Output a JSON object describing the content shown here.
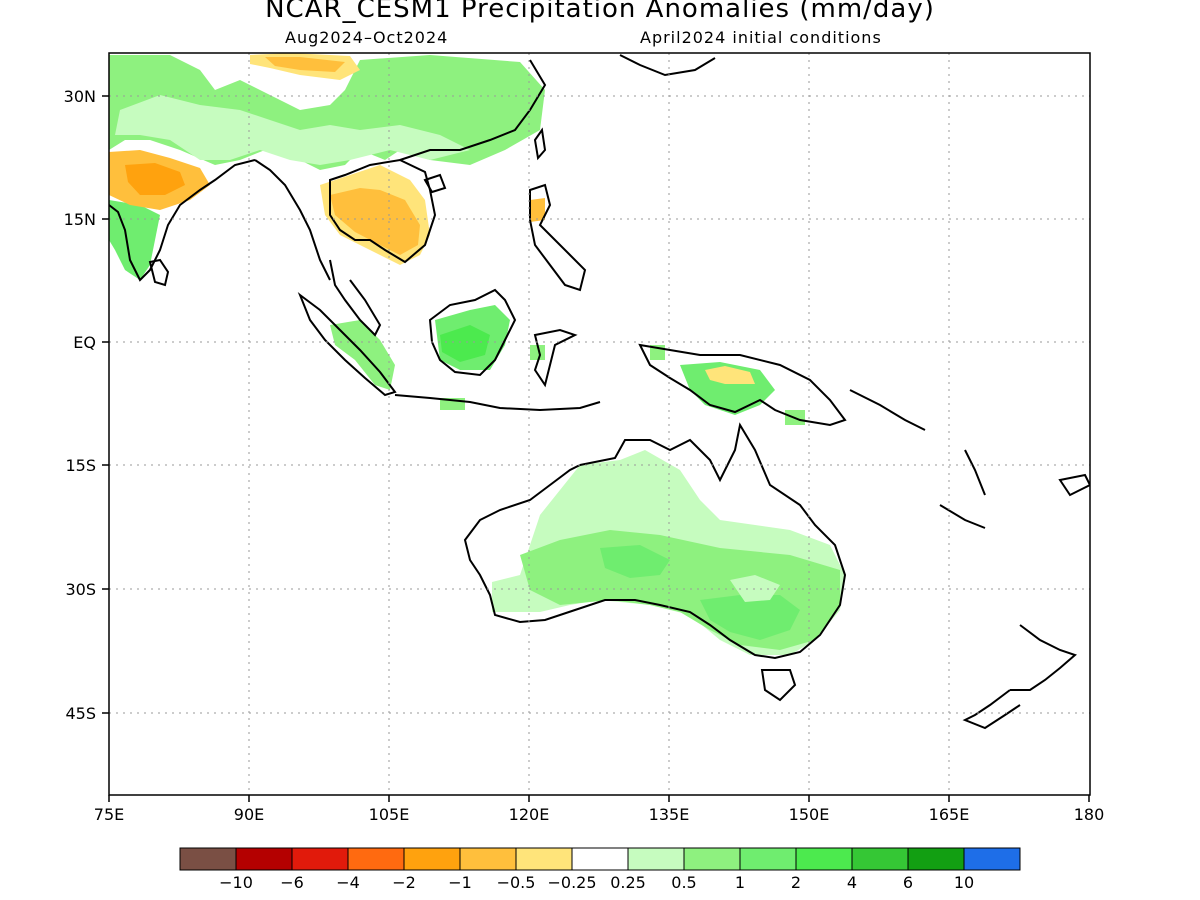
{
  "title": "NCAR_CESM1 Precipitation Anomalies (mm/day)",
  "period": "Aug2024–Oct2024",
  "init": "April2024 initial conditions",
  "lon_labels": [
    "75E",
    "90E",
    "105E",
    "120E",
    "135E",
    "150E",
    "165E",
    "180"
  ],
  "lat_labels": [
    "30N",
    "15N",
    "EQ",
    "15S",
    "30S",
    "45S"
  ],
  "colorbar": {
    "colors": [
      "#7a4f44",
      "#b40000",
      "#e11a0b",
      "#ff6a10",
      "#ffa20e",
      "#ffbf3c",
      "#ffe47a",
      "#ffffff",
      "#c6fcbf",
      "#8ef17f",
      "#6fed6f",
      "#4cea4e",
      "#35c735",
      "#129f12",
      "#1e6ee8"
    ],
    "labels": [
      "−10",
      "−6",
      "−4",
      "−2",
      "−1",
      "−0.5",
      "−0.25",
      "0.25",
      "0.5",
      "1",
      "2",
      "4",
      "6",
      "10"
    ]
  },
  "map_fill_colors": {
    "light_green": "#c6fcbf",
    "green": "#8ef17f",
    "mid_green": "#6fed6f",
    "bright_green": "#4cea4e",
    "light_orange": "#ffe47a",
    "orange": "#ffbf3c",
    "dark_orange": "#ffa20e"
  }
}
